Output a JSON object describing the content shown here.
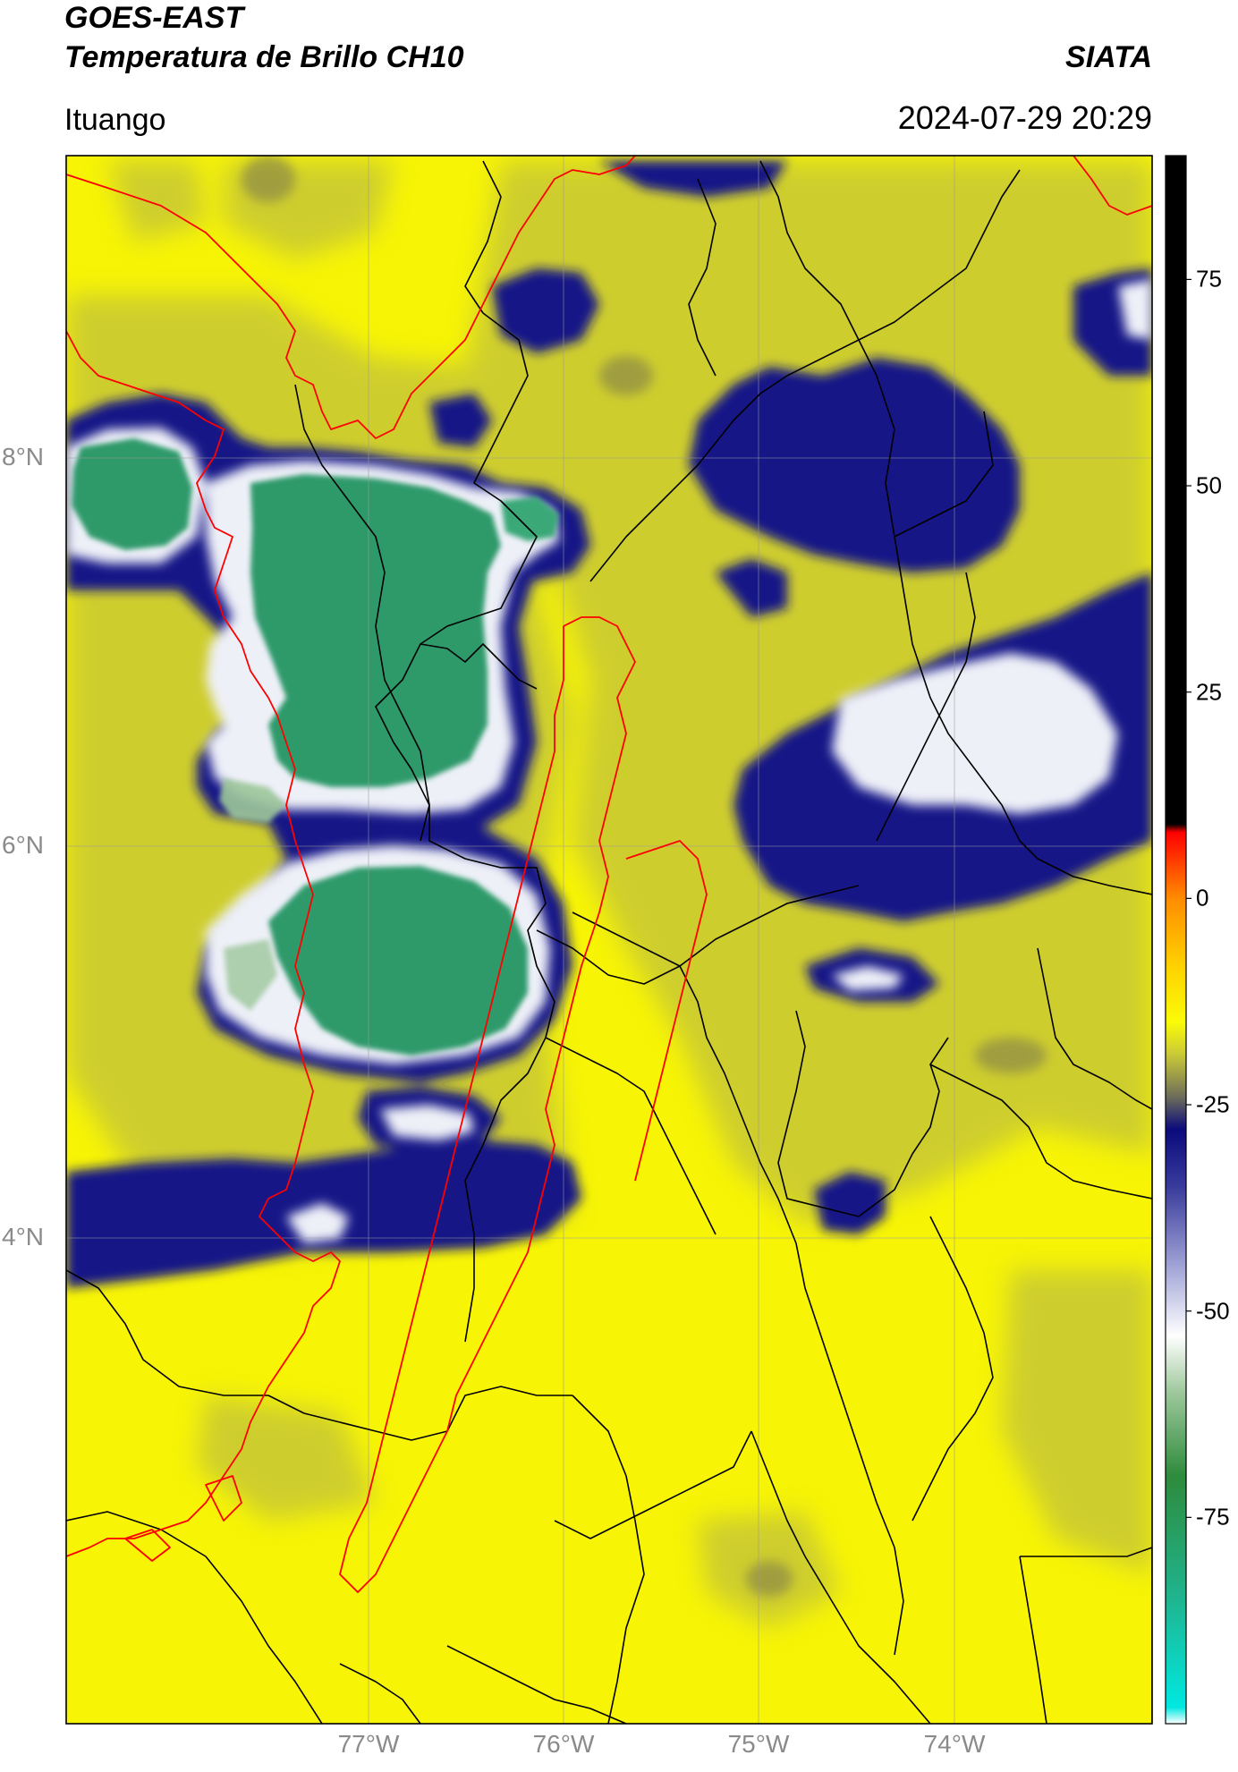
{
  "header": {
    "satellite": "GOES-EAST",
    "product": "Temperatura de Brillo CH10",
    "organization": "SIATA",
    "region": "Ituango",
    "timestamp": "2024-07-29 20:29"
  },
  "axes": {
    "latitude_labels": [
      "8°N",
      "6°N",
      "4°N"
    ],
    "longitude_labels": [
      "77°W",
      "76°W",
      "75°W",
      "74°W"
    ]
  },
  "colorbar": {
    "tick_labels": [
      "75",
      "50",
      "25",
      "0",
      "-25",
      "-50",
      "-75"
    ],
    "range": [
      -100,
      90
    ],
    "stops": [
      {
        "value": -100,
        "color": "#ffffff"
      },
      {
        "value": -98,
        "color": "#00e8e0"
      },
      {
        "value": -85,
        "color": "#1fb590"
      },
      {
        "value": -70,
        "color": "#2e8b3c"
      },
      {
        "value": -60,
        "color": "#9cc79a"
      },
      {
        "value": -53,
        "color": "#ffffff"
      },
      {
        "value": -45,
        "color": "#a5a8d8"
      },
      {
        "value": -35,
        "color": "#3a3c9c"
      },
      {
        "value": -28,
        "color": "#0a0a7c"
      },
      {
        "value": -24,
        "color": "#6e6e5a"
      },
      {
        "value": -19,
        "color": "#c8c838"
      },
      {
        "value": -15,
        "color": "#fbfb08"
      },
      {
        "value": -8,
        "color": "#ffd000"
      },
      {
        "value": 0,
        "color": "#ff8c00"
      },
      {
        "value": 8,
        "color": "#ff0000"
      },
      {
        "value": 9,
        "color": "#000000"
      },
      {
        "value": 90,
        "color": "#000000"
      }
    ]
  },
  "colors": {
    "background_warm": "#f7f406",
    "olive": "#c7c735",
    "cloud_navy": "#121287",
    "cloud_white": "#f2f2f6",
    "cloud_green": "#2f9a6a",
    "coastline": "#ff0000",
    "boundaries": "#000000",
    "grid": "#9a9a9a"
  }
}
